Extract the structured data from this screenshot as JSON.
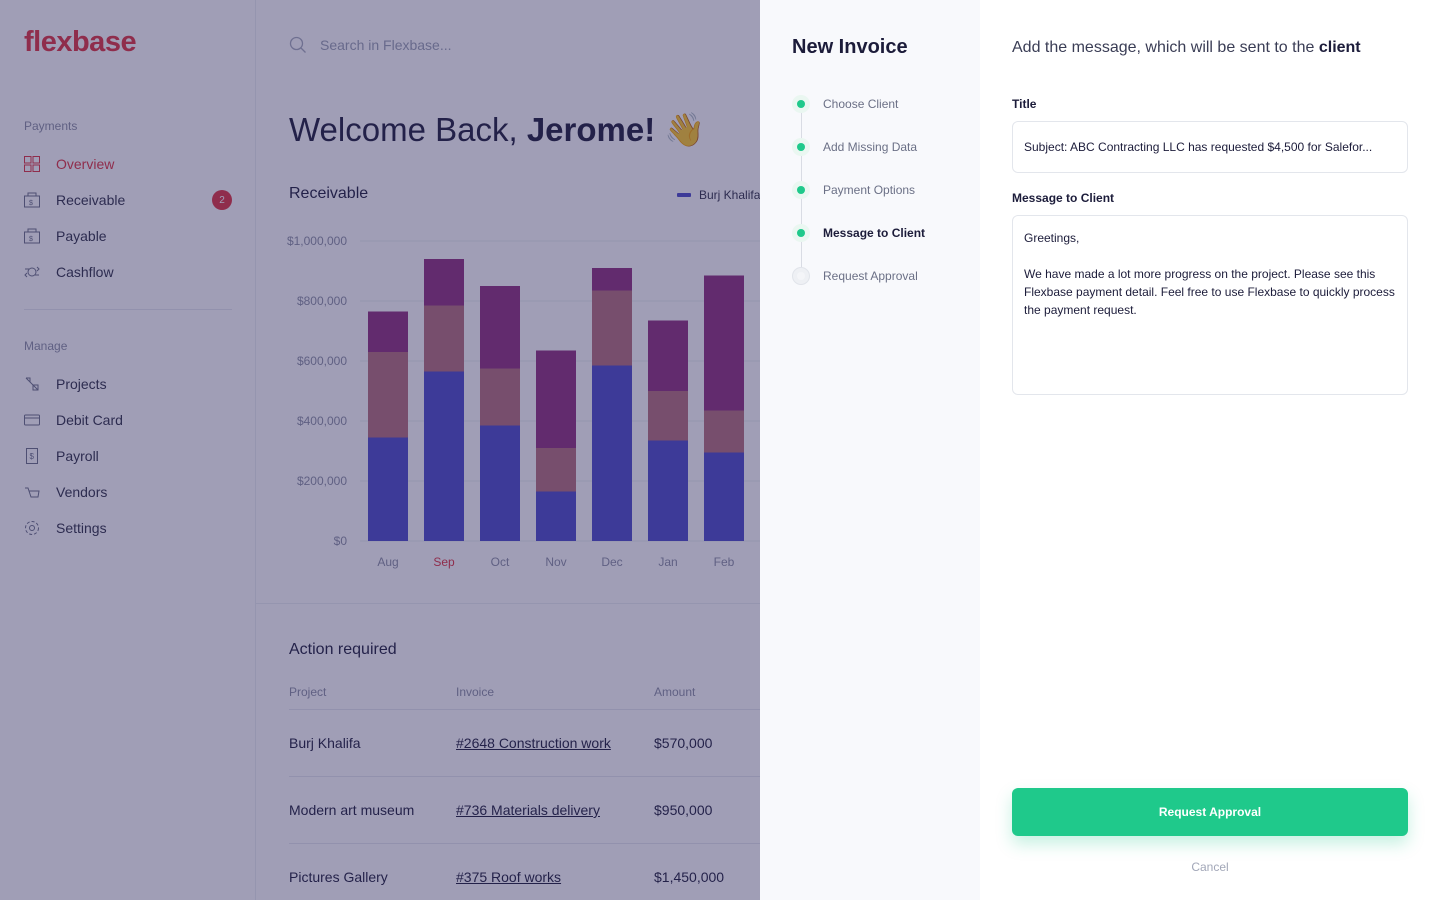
{
  "brand": {
    "logo": "flexbase",
    "accent": "#e0323f",
    "success": "#1fc98b"
  },
  "sidebar": {
    "payments_heading": "Payments",
    "payments_items": [
      {
        "label": "Overview",
        "icon": "grid-icon",
        "active": true
      },
      {
        "label": "Receivable",
        "icon": "receivable-icon",
        "badge": "2"
      },
      {
        "label": "Payable",
        "icon": "payable-icon"
      },
      {
        "label": "Cashflow",
        "icon": "cashflow-icon"
      }
    ],
    "manage_heading": "Manage",
    "manage_items": [
      {
        "label": "Projects",
        "icon": "projects-icon"
      },
      {
        "label": "Debit Card",
        "icon": "card-icon"
      },
      {
        "label": "Payroll",
        "icon": "payroll-icon"
      },
      {
        "label": "Vendors",
        "icon": "vendors-icon"
      },
      {
        "label": "Settings",
        "icon": "gear-icon"
      }
    ]
  },
  "search": {
    "placeholder": "Search in Flexbase..."
  },
  "welcome": {
    "prefix": "Welcome Back,",
    "name": "Jerome!",
    "emoji": "👋"
  },
  "receivable": {
    "title": "Receivable",
    "legend": "Burj Khalifa"
  },
  "chart_data": {
    "type": "bar",
    "stacked": true,
    "categories": [
      "Aug",
      "Sep",
      "Oct",
      "Nov",
      "Dec",
      "Jan",
      "Feb"
    ],
    "highlight_category": "Sep",
    "ylim": [
      0,
      1000000
    ],
    "y_ticks": [
      "$0",
      "$200,000",
      "$400,000",
      "$600,000",
      "$800,000",
      "$1,000,000"
    ],
    "series": [
      {
        "name": "Burj Khalifa",
        "color": "#4b49c9",
        "values": [
          345000,
          565000,
          385000,
          165000,
          585000,
          335000,
          295000
        ]
      },
      {
        "color": "#b56e7b",
        "values": [
          285000,
          220000,
          190000,
          145000,
          250000,
          165000,
          140000
        ]
      },
      {
        "color": "#8e2e7c",
        "values": [
          135000,
          155000,
          275000,
          325000,
          75000,
          235000,
          450000
        ]
      }
    ]
  },
  "actions": {
    "title": "Action required",
    "columns": [
      "Project",
      "Invoice",
      "Amount"
    ],
    "rows": [
      {
        "project": "Burj Khalifa",
        "invoice": "#2648 Construction work",
        "amount": "$570,000"
      },
      {
        "project": "Modern art museum",
        "invoice": "#736 Materials delivery",
        "amount": "$950,000"
      },
      {
        "project": "Pictures Gallery",
        "invoice": "#375 Roof works",
        "amount": "$1,450,000"
      }
    ]
  },
  "modal": {
    "title": "New Invoice",
    "steps": [
      {
        "label": "Choose Client",
        "state": "done"
      },
      {
        "label": "Add Missing Data",
        "state": "done"
      },
      {
        "label": "Payment Options",
        "state": "done"
      },
      {
        "label": "Message to Client",
        "state": "current"
      },
      {
        "label": "Request Approval",
        "state": "pending"
      }
    ],
    "heading_prefix": "Add the message, which will be sent to the",
    "heading_bold": "client",
    "title_label": "Title",
    "title_value": "Subject: ABC Contracting LLC has requested $4,500 for Salefor...",
    "message_label": "Message to Client",
    "message_value": "Greetings,\n\nWe have made a lot more progress on the project. Please see this Flexbase payment detail. Feel free to use Flexbase to quickly process the payment request.",
    "submit_label": "Request Approval",
    "cancel_label": "Cancel"
  }
}
